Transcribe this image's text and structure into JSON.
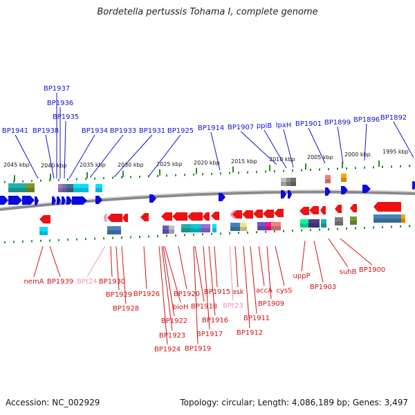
{
  "title": "Bordetella pertussis Tohama I, complete genome",
  "accession": "Accession: NC_002929",
  "topology": "Topology: circular; Length: 4,086,189 bp; Genes: 3,497",
  "colors": {
    "upper_label": "#1010d0",
    "lower_label": "#d01010",
    "pseudo_label": "#f090c0",
    "forward_gene": "#0a0ae0",
    "reverse_gene": "#ee1111",
    "backbone": "#888888",
    "ruler_tick": "#228b22"
  },
  "scale_labels": [
    "2045 kbp",
    "2040 kbp",
    "2035 kbp",
    "2030 kbp",
    "2025 kbp",
    "2020 kbp",
    "2015 kbp",
    "2010 kbp",
    "2005 kbp",
    "2000 kbp",
    "1995 kbp"
  ],
  "upper_labels": [
    "BP1937",
    "BP1936",
    "BP1935",
    "BP1941",
    "BP1938",
    "BP1934",
    "BP1933",
    "BP1931",
    "BP1925",
    "BP1914",
    "BP1907",
    "ppiB",
    "lpxH",
    "BP1901",
    "BP1899",
    "BP1896",
    "BP1892"
  ],
  "lower_labels": [
    "nemA",
    "BP1939",
    "BPt24",
    "BP1930",
    "BP1929",
    "BP1928",
    "BP1926",
    "bioH",
    "BP1920",
    "BP1922",
    "BP1923",
    "BP1924",
    "BP1918",
    "BP1919",
    "BP1917",
    "BP1916",
    "BP1915",
    "ask",
    "BPt23",
    "BP1912",
    "BP1911",
    "accA",
    "BP1909",
    "cysS",
    "uppP",
    "BP1903",
    "suhB",
    "BP1900"
  ]
}
